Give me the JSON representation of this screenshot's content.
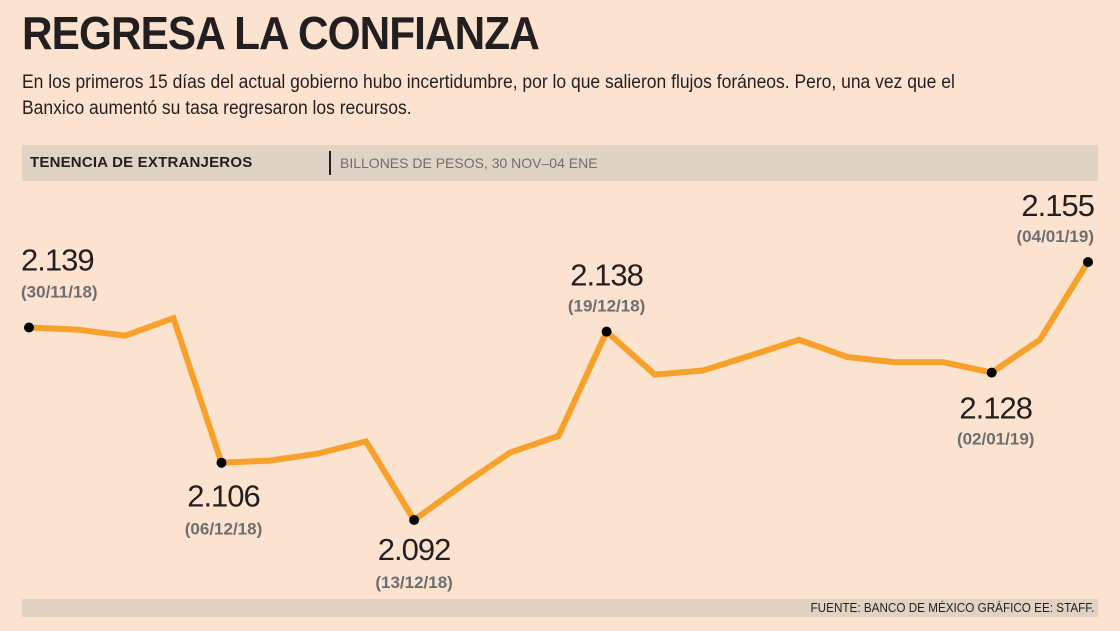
{
  "header": {
    "title": "REGRESA LA CONFIANZA",
    "subtitle": "En los primeros 15 días del actual gobierno hubo incertidumbre, por lo que salieron flujos foráneos. Pero, una vez que el Banxico aumentó su tasa regresaron los recursos."
  },
  "bar": {
    "label": "TENENCIA DE EXTRANJEROS",
    "units": "BILLONES DE PESOS, 30 NOV–04 ENE"
  },
  "footer": {
    "source": "FUENTE: BANCO DE MÉXICO GRÁFICO EE: STAFF."
  },
  "colors": {
    "background": "#fbe3cf",
    "line": "#f7a02a",
    "bars": "#e1d3c4",
    "date_text": "#6d6e71"
  },
  "chart_data": {
    "type": "line",
    "title": "TENENCIA DE EXTRANJEROS",
    "ylabel": "BILLONES DE PESOS, 30 NOV–04 ENE",
    "ylim": [
      2.085,
      2.16
    ],
    "grid": false,
    "legend": "none",
    "series": [
      {
        "values": [
          2.139,
          2.1385,
          2.137,
          2.1413,
          2.106,
          2.1065,
          2.1082,
          2.1112,
          2.092,
          2.1005,
          2.1085,
          2.1125,
          2.138,
          2.1275,
          2.1285,
          2.1322,
          2.136,
          2.1318,
          2.1305,
          2.1305,
          2.128,
          2.136,
          2.155
        ]
      }
    ],
    "annotations": [
      {
        "index": 0,
        "value": "2.139",
        "date": "(30/11/18)"
      },
      {
        "index": 4,
        "value": "2.106",
        "date": "(06/12/18)"
      },
      {
        "index": 8,
        "value": "2.092",
        "date": "(13/12/18)"
      },
      {
        "index": 12,
        "value": "2.138",
        "date": "(19/12/18)"
      },
      {
        "index": 20,
        "value": "2.128",
        "date": "(02/01/19)"
      },
      {
        "index": 22,
        "value": "2.155",
        "date": "(04/01/19)"
      }
    ]
  }
}
